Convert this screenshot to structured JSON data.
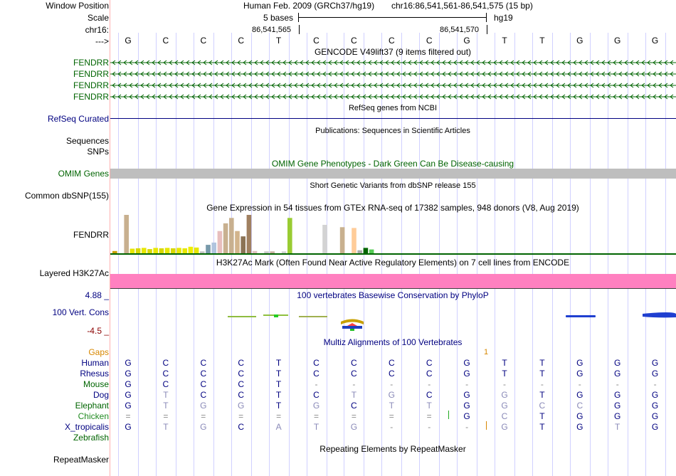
{
  "labels": {
    "window_position": "Window Position",
    "scale": "Scale",
    "chr": "chr16:",
    "strand": "--->",
    "gencode": [
      "FENDRR",
      "FENDRR",
      "FENDRR",
      "FENDRR"
    ],
    "refseq": "RefSeq Curated",
    "sequences": "Sequences",
    "snps": "SNPs",
    "omim": "OMIM Genes",
    "common_dbsnp": "Common dbSNP(155)",
    "gtex_gene": "FENDRR",
    "h3k27ac": "Layered H3K27Ac",
    "cons_max": "4.88 _",
    "cons_name": "100 Vert. Cons",
    "cons_min": "-4.5 _",
    "gaps": "Gaps",
    "species": [
      "Human",
      "Rhesus",
      "Mouse",
      "Dog",
      "Elephant",
      "Chicken",
      "X_tropicalis",
      "Zebrafish"
    ],
    "repeatmasker": "RepeatMasker"
  },
  "header": {
    "assembly": "Human Feb. 2009 (GRCh37/hg19)",
    "position": "chr16:86,541,561-86,541,575 (15 bp)",
    "scale_text": "5 bases",
    "db": "hg19",
    "coord_left": "86,541,565",
    "coord_right": "86,541,570"
  },
  "titles": {
    "gencode": "GENCODE V49lift37 (9 items filtered out)",
    "refseq": "RefSeq genes from NCBI",
    "publications": "Publications: Sequences in Scientific Articles",
    "omim": "OMIM Gene Phenotypes - Dark Green Can Be Disease-causing",
    "dbsnp": "Short Genetic Variants from dbSNP release 155",
    "gtex": "Gene Expression in 54 tissues from GTEx RNA-seq of 17382 samples, 948 donors (V8, Aug 2019)",
    "h3k27ac": "H3K27Ac Mark (Often Found Near Active Regulatory Elements) on 7 cell lines from ENCODE",
    "phylop": "100 vertebrates Basewise Conservation by PhyloP",
    "multiz": "Multiz Alignments of 100 Vertebrates",
    "repeatmasker": "Repeating Elements by RepeatMasker"
  },
  "sequence": [
    "G",
    "C",
    "C",
    "C",
    "T",
    "C",
    "C",
    "C",
    "C",
    "G",
    "T",
    "T",
    "G",
    "G",
    "G"
  ],
  "gaps_mark": "1",
  "alignment": [
    [
      "G",
      "C",
      "C",
      "C",
      "T",
      "C",
      "C",
      "C",
      "C",
      "G",
      "T",
      "T",
      "G",
      "G",
      "G"
    ],
    [
      "G",
      "C",
      "C",
      "C",
      "T",
      "C",
      "C",
      "C",
      "C",
      "G",
      "T",
      "T",
      "G",
      "G",
      "G"
    ],
    [
      "G",
      "C",
      "C",
      "C",
      "T",
      "-",
      "-",
      "-",
      "-",
      "-",
      "-",
      "-",
      "-",
      "-",
      "-"
    ],
    [
      "G",
      "T",
      "C",
      "C",
      "T",
      "C",
      "T",
      "G",
      "C",
      "G",
      "G",
      "T",
      "G",
      "G",
      "G"
    ],
    [
      "G",
      "T",
      "G",
      "G",
      "T",
      "G",
      "C",
      "T",
      "T",
      "G",
      "G",
      "C",
      "C",
      "G",
      "G"
    ],
    [
      "=",
      "=",
      "=",
      "=",
      "=",
      "=",
      "=",
      "=",
      "=",
      "G",
      "C",
      "T",
      "G",
      "G",
      "G"
    ],
    [
      "G",
      "T",
      "G",
      "C",
      "A",
      "T",
      "G",
      "-",
      "-",
      "-",
      "G",
      "T",
      "G",
      "T",
      "G"
    ],
    [
      "",
      "",
      "",
      "",
      "",
      "",
      "",
      "",
      "",
      "",
      "",
      "",
      "",
      "",
      ""
    ]
  ],
  "gtex_bars": [
    {
      "v": 0.06,
      "c": "#c9a000"
    },
    {
      "v": 0.0,
      "c": "#eeee00"
    },
    {
      "v": 1.0,
      "c": "#c8b08f"
    },
    {
      "v": 0.12,
      "c": "#e7e700"
    },
    {
      "v": 0.13,
      "c": "#d8d800"
    },
    {
      "v": 0.14,
      "c": "#e7e700"
    },
    {
      "v": 0.11,
      "c": "#d8d800"
    },
    {
      "v": 0.14,
      "c": "#e7e700"
    },
    {
      "v": 0.13,
      "c": "#d8d800"
    },
    {
      "v": 0.14,
      "c": "#e7e700"
    },
    {
      "v": 0.13,
      "c": "#d8d800"
    },
    {
      "v": 0.14,
      "c": "#e7e700"
    },
    {
      "v": 0.13,
      "c": "#e7e700"
    },
    {
      "v": 0.17,
      "c": "#eeee00"
    },
    {
      "v": 0.15,
      "c": "#e7e700"
    },
    {
      "v": 0.05,
      "c": "#c0c0c0"
    },
    {
      "v": 0.22,
      "c": "#7799aa"
    },
    {
      "v": 0.28,
      "c": "#b0c4de"
    },
    {
      "v": 0.58,
      "c": "#e8bebe"
    },
    {
      "v": 0.78,
      "c": "#c8b08f"
    },
    {
      "v": 0.92,
      "c": "#c8b08f"
    },
    {
      "v": 0.58,
      "c": "#d2b48c"
    },
    {
      "v": 0.44,
      "c": "#8b7355"
    },
    {
      "v": 1.0,
      "c": "#a08060"
    },
    {
      "v": 0.06,
      "c": "#e0c0c0"
    },
    {
      "v": 0.0,
      "c": "#eeee00"
    },
    {
      "v": 0.05,
      "c": "#c8c8c8"
    },
    {
      "v": 0.05,
      "c": "#c8b0a0"
    },
    {
      "v": 0.0,
      "c": "#eeee00"
    },
    {
      "v": 0.05,
      "c": "#d0d0d0"
    },
    {
      "v": 0.92,
      "c": "#99cc33"
    },
    {
      "v": 0.0,
      "c": "#eeee00"
    },
    {
      "v": 0.0,
      "c": "#eeee00"
    },
    {
      "v": 0.0,
      "c": "#eeee00"
    },
    {
      "v": 0.0,
      "c": "#eeee00"
    },
    {
      "v": 0.0,
      "c": "#eeee00"
    },
    {
      "v": 0.74,
      "c": "#d3d3d3"
    },
    {
      "v": 0.0,
      "c": "#eeee00"
    },
    {
      "v": 0.0,
      "c": "#eeee00"
    },
    {
      "v": 0.68,
      "c": "#c8b08f"
    },
    {
      "v": 0.0,
      "c": "#eeee00"
    },
    {
      "v": 0.66,
      "c": "#ffcc99"
    },
    {
      "v": 0.08,
      "c": "#aaaaaa"
    },
    {
      "v": 0.14,
      "c": "#006400"
    },
    {
      "v": 0.1,
      "c": "#55cc55"
    },
    {
      "v": 0.0,
      "c": "#eeee00"
    }
  ],
  "colors": {
    "gencode": "#006400",
    "refseq": "#000080",
    "omim_bar": "#bebebe",
    "h3k27ac": "#ff80c0",
    "grid": "#d0d0ff",
    "gaps": "#d78700",
    "chicken": "#228b22",
    "zebrafish": "#006400"
  }
}
